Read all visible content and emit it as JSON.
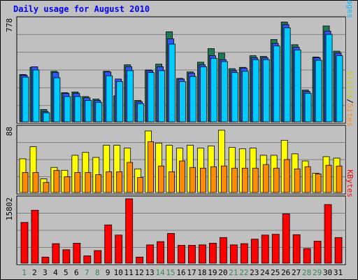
{
  "title": "Daily usage for August 2010",
  "colors": {
    "background": "#c0c0c0",
    "title": "#0000ff",
    "hits": "#1e7a55",
    "files": "#00ccff",
    "pages": "#00bbff",
    "visits": "#ffff00",
    "sites": "#ff8c00",
    "kbytes": "#ff0000",
    "weekend_day": "#2e8b57",
    "weekday": "#000000"
  },
  "legend_top": [
    {
      "text": "Hits",
      "color": "#2e8b57"
    },
    {
      "text": "/",
      "color": "#000000"
    },
    {
      "text": "Files",
      "color": "#0000ff"
    },
    {
      "text": "/",
      "color": "#000000"
    },
    {
      "text": "Pages",
      "color": "#00bbff"
    }
  ],
  "legend_mid": [
    {
      "text": "Visits",
      "color": "#cccc00"
    },
    {
      "text": "/",
      "color": "#000000"
    },
    {
      "text": "Sites",
      "color": "#ff8c00"
    }
  ],
  "legend_bot": [
    {
      "text": "KBytes",
      "color": "#ff0000"
    }
  ],
  "chart_data": [
    {
      "type": "bar",
      "name": "hits-files-pages",
      "ymax_label": "778",
      "ylim": [
        0,
        778
      ],
      "categories": [
        "1",
        "2",
        "3",
        "4",
        "5",
        "6",
        "7",
        "8",
        "9",
        "10",
        "11",
        "12",
        "13",
        "14",
        "15",
        "16",
        "17",
        "18",
        "19",
        "20",
        "21",
        "22",
        "23",
        "24",
        "25",
        "26",
        "27",
        "28",
        "29",
        "30",
        "31"
      ],
      "series": [
        {
          "name": "Hits",
          "values": [
            365,
            420,
            95,
            390,
            225,
            230,
            195,
            175,
            390,
            200,
            440,
            165,
            400,
            445,
            695,
            335,
            385,
            460,
            565,
            530,
            410,
            420,
            510,
            505,
            635,
            770,
            595,
            245,
            500,
            740,
            545
          ]
        },
        {
          "name": "Files",
          "values": [
            360,
            425,
            80,
            380,
            220,
            220,
            185,
            165,
            385,
            330,
            425,
            155,
            395,
            425,
            640,
            330,
            375,
            440,
            510,
            480,
            395,
            415,
            495,
            495,
            605,
            750,
            575,
            235,
            495,
            700,
            530
          ]
        },
        {
          "name": "Pages",
          "values": [
            345,
            400,
            70,
            340,
            195,
            195,
            165,
            150,
            355,
            310,
            395,
            140,
            380,
            395,
            600,
            310,
            350,
            425,
            490,
            465,
            380,
            390,
            480,
            480,
            585,
            725,
            555,
            220,
            475,
            675,
            510
          ]
        }
      ]
    },
    {
      "type": "bar",
      "name": "visits-sites",
      "ymax_label": "88",
      "ylim": [
        0,
        88
      ],
      "categories": [
        "1",
        "2",
        "3",
        "4",
        "5",
        "6",
        "7",
        "8",
        "9",
        "10",
        "11",
        "12",
        "13",
        "14",
        "15",
        "16",
        "17",
        "18",
        "19",
        "20",
        "21",
        "22",
        "23",
        "24",
        "25",
        "26",
        "27",
        "28",
        "29",
        "30",
        "31"
      ],
      "series": [
        {
          "name": "Visits",
          "values": [
            47,
            64,
            19,
            35,
            31,
            52,
            56,
            49,
            66,
            66,
            62,
            33,
            86,
            69,
            66,
            62,
            66,
            62,
            65,
            87,
            63,
            61,
            62,
            52,
            52,
            73,
            54,
            44,
            27,
            50,
            48
          ]
        },
        {
          "name": "Sites",
          "values": [
            28,
            28,
            14,
            31,
            22,
            28,
            28,
            25,
            29,
            29,
            42,
            21,
            71,
            37,
            29,
            44,
            35,
            34,
            36,
            37,
            34,
            34,
            34,
            39,
            34,
            46,
            33,
            36,
            26,
            38,
            37
          ]
        }
      ]
    },
    {
      "type": "bar",
      "name": "kbytes",
      "ymax_label": "15802",
      "ylim": [
        0,
        15802
      ],
      "categories": [
        "1",
        "2",
        "3",
        "4",
        "5",
        "6",
        "7",
        "8",
        "9",
        "10",
        "11",
        "12",
        "13",
        "14",
        "15",
        "16",
        "17",
        "18",
        "19",
        "20",
        "21",
        "22",
        "23",
        "24",
        "25",
        "26",
        "27",
        "28",
        "29",
        "30",
        "31"
      ],
      "series": [
        {
          "name": "KBytes",
          "values": [
            10000,
            13000,
            1500,
            4800,
            3300,
            4900,
            1800,
            3100,
            9400,
            6900,
            15802,
            1500,
            4500,
            5300,
            7300,
            4400,
            4400,
            4500,
            4900,
            6300,
            4500,
            4800,
            5900,
            6900,
            7100,
            12100,
            7000,
            3600,
            5400,
            14400,
            6300
          ]
        }
      ]
    }
  ]
}
